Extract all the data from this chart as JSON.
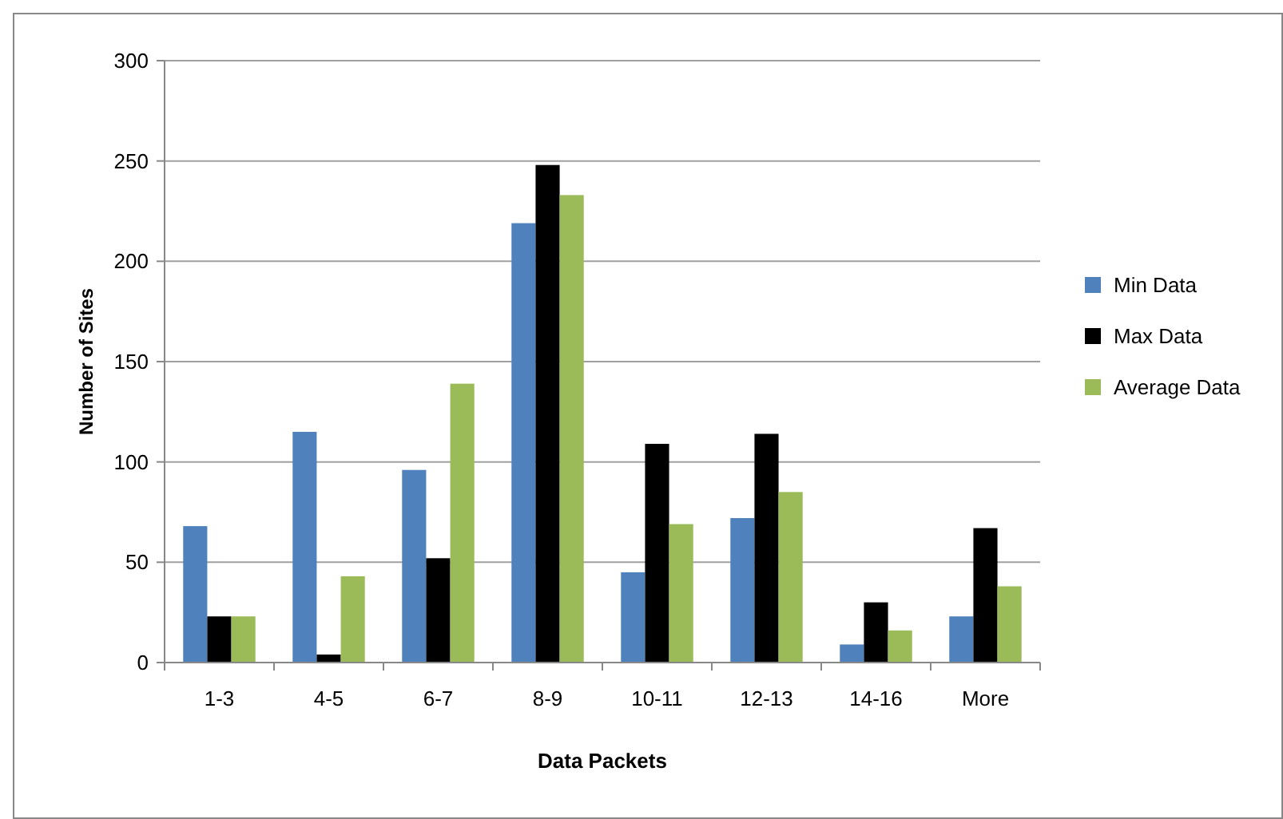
{
  "chart_data": {
    "type": "bar",
    "xlabel": "Data Packets",
    "ylabel": "Number of Sites",
    "categories": [
      "1-3",
      "4-5",
      "6-7",
      "8-9",
      "10-11",
      "12-13",
      "14-16",
      "More"
    ],
    "series": [
      {
        "name": "Min Data",
        "color": "#4f81bd",
        "values": [
          68,
          115,
          96,
          219,
          45,
          72,
          9,
          23
        ]
      },
      {
        "name": "Max Data",
        "color": "#000000",
        "values": [
          23,
          4,
          52,
          248,
          109,
          114,
          30,
          67
        ]
      },
      {
        "name": "Average Data",
        "color": "#9bbb59",
        "values": [
          23,
          43,
          139,
          233,
          69,
          85,
          16,
          38
        ]
      }
    ],
    "ylim": [
      0,
      300
    ],
    "yticks": [
      0,
      50,
      100,
      150,
      200,
      250,
      300
    ],
    "grid": "y",
    "legend": "right"
  }
}
